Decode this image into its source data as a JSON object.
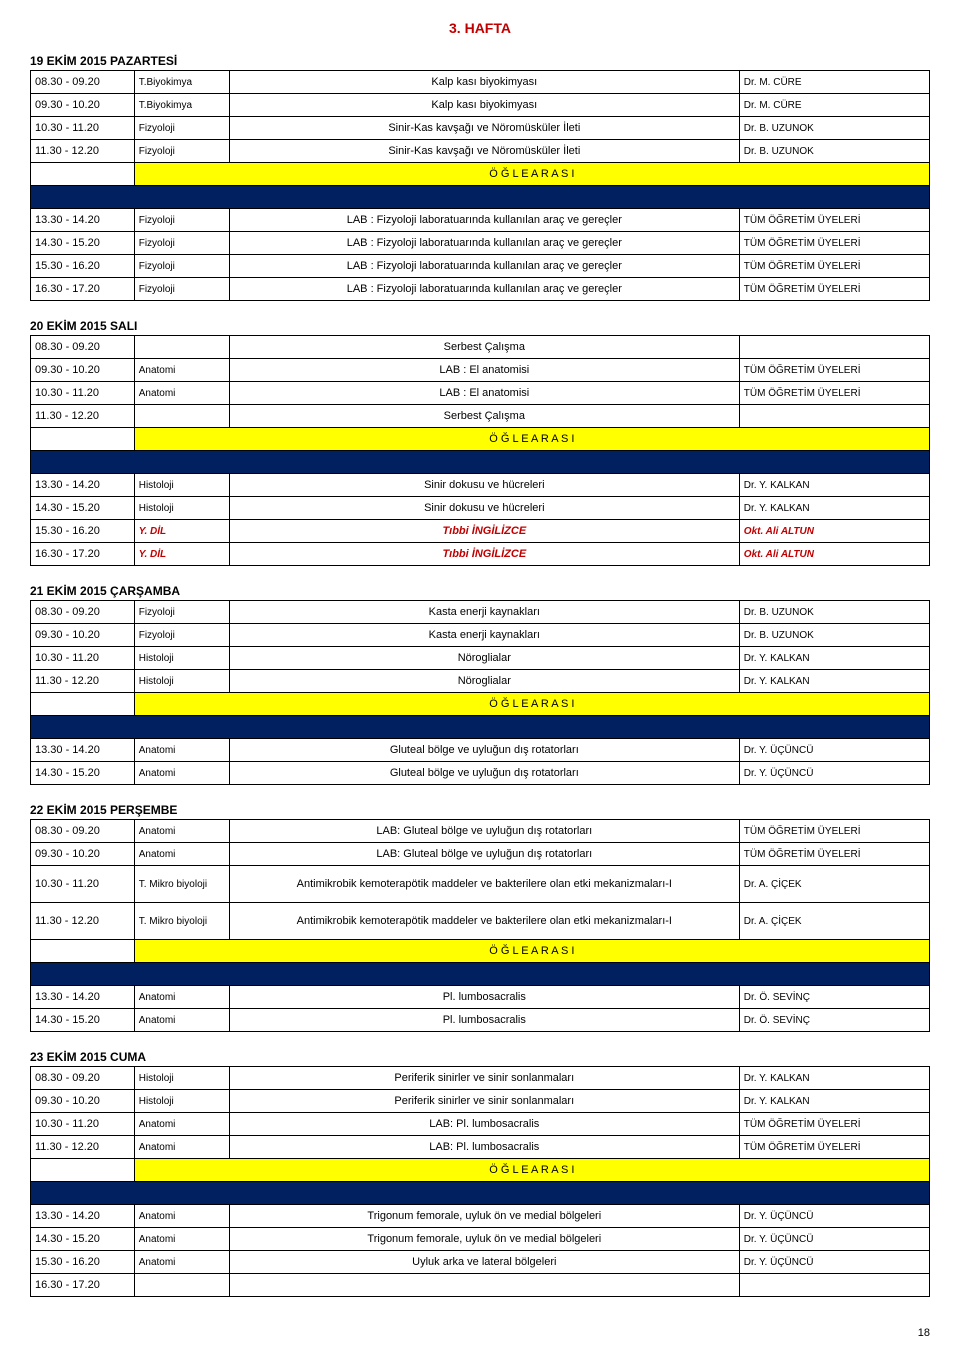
{
  "page_title": "3. HAFTA",
  "break_label": "Ö Ğ L E    A R A S I",
  "page_number": "18",
  "colors": {
    "title": "#c00000",
    "blue_row": "#002060",
    "yellow_row": "#ffff00",
    "red_text": "#c00000"
  },
  "days": [
    {
      "heading": "19 EKİM 2015 PAZARTESİ",
      "rows": [
        {
          "type": "row",
          "time": "08.30 - 09.20",
          "dept": "T.Biyokimya",
          "desc": "Kalp kası biyokimyası",
          "teacher": "Dr. M. CÜRE"
        },
        {
          "type": "row",
          "time": "09.30 - 10.20",
          "dept": "T.Biyokimya",
          "desc": "Kalp kası biyokimyası",
          "teacher": "Dr. M. CÜRE"
        },
        {
          "type": "row",
          "time": "10.30 - 11.20",
          "dept": "Fizyoloji",
          "desc": "Sinir-Kas kavşağı ve Nöromüsküler İleti",
          "teacher": "Dr. B. UZUNOK"
        },
        {
          "type": "row",
          "time": "11.30 - 12.20",
          "dept": "Fizyoloji",
          "desc": "Sinir-Kas kavşağı ve Nöromüsküler İleti",
          "teacher": "Dr. B. UZUNOK"
        },
        {
          "type": "break"
        },
        {
          "type": "blue"
        },
        {
          "type": "row",
          "time": "13.30 - 14.20",
          "dept": "Fizyoloji",
          "desc": "LAB : Fizyoloji laboratuarında kullanılan araç ve gereçler",
          "teacher": "TÜM ÖĞRETİM ÜYELERİ"
        },
        {
          "type": "row",
          "time": "14.30 - 15.20",
          "dept": "Fizyoloji",
          "desc": "LAB : Fizyoloji laboratuarında kullanılan araç ve gereçler",
          "teacher": "TÜM ÖĞRETİM ÜYELERİ"
        },
        {
          "type": "row",
          "time": "15.30 - 16.20",
          "dept": "Fizyoloji",
          "desc": "LAB : Fizyoloji laboratuarında kullanılan araç ve gereçler",
          "teacher": "TÜM ÖĞRETİM ÜYELERİ"
        },
        {
          "type": "row",
          "time": "16.30 - 17.20",
          "dept": "Fizyoloji",
          "desc": "LAB : Fizyoloji laboratuarında kullanılan araç ve gereçler",
          "teacher": "TÜM ÖĞRETİM ÜYELERİ"
        }
      ]
    },
    {
      "heading": "20 EKİM 2015 SALI",
      "rows": [
        {
          "type": "row",
          "time": "08.30 - 09.20",
          "dept": "",
          "desc": "Serbest Çalışma",
          "teacher": ""
        },
        {
          "type": "row",
          "time": "09.30 - 10.20",
          "dept": "Anatomi",
          "desc": "LAB : El anatomisi",
          "teacher": "TÜM ÖĞRETİM ÜYELERİ"
        },
        {
          "type": "row",
          "time": "10.30 - 11.20",
          "dept": "Anatomi",
          "desc": "LAB : El anatomisi",
          "teacher": "TÜM ÖĞRETİM ÜYELERİ"
        },
        {
          "type": "row",
          "time": "11.30 - 12.20",
          "dept": "",
          "desc": "Serbest Çalışma",
          "teacher": ""
        },
        {
          "type": "break"
        },
        {
          "type": "blue"
        },
        {
          "type": "row",
          "time": "13.30 - 14.20",
          "dept": "Histoloji",
          "desc": "Sinir dokusu ve hücreleri",
          "teacher": "Dr. Y. KALKAN"
        },
        {
          "type": "row",
          "time": "14.30 - 15.20",
          "dept": "Histoloji",
          "desc": "Sinir dokusu ve hücreleri",
          "teacher": "Dr. Y. KALKAN"
        },
        {
          "type": "row",
          "time": "15.30 - 16.20",
          "dept": "Y. DİL",
          "dept_red": true,
          "desc": "Tıbbi İNGİLİZCE",
          "desc_red": true,
          "teacher": "Okt. Ali ALTUN",
          "teacher_red": true
        },
        {
          "type": "row",
          "time": "16.30 - 17.20",
          "dept": "Y. DİL",
          "dept_red": true,
          "desc": "Tıbbi İNGİLİZCE",
          "desc_red": true,
          "teacher": "Okt. Ali ALTUN",
          "teacher_red": true
        }
      ]
    },
    {
      "heading": "21 EKİM 2015 ÇARŞAMBA",
      "rows": [
        {
          "type": "row",
          "time": "08.30 - 09.20",
          "dept": "Fizyoloji",
          "desc": "Kasta enerji kaynakları",
          "teacher": "Dr. B. UZUNOK"
        },
        {
          "type": "row",
          "time": "09.30 - 10.20",
          "dept": "Fizyoloji",
          "desc": "Kasta enerji kaynakları",
          "teacher": "Dr. B. UZUNOK"
        },
        {
          "type": "row",
          "time": "10.30 - 11.20",
          "dept": "Histoloji",
          "desc": "Nöroglialar",
          "teacher": "Dr. Y. KALKAN"
        },
        {
          "type": "row",
          "time": "11.30 - 12.20",
          "dept": "Histoloji",
          "desc": "Nöroglialar",
          "teacher": "Dr. Y. KALKAN"
        },
        {
          "type": "break"
        },
        {
          "type": "blue"
        },
        {
          "type": "row",
          "time": "13.30 - 14.20",
          "dept": "Anatomi",
          "desc": "Gluteal bölge ve uyluğun dış rotatorları",
          "teacher": "Dr. Y. ÜÇÜNCÜ"
        },
        {
          "type": "row",
          "time": "14.30 - 15.20",
          "dept": "Anatomi",
          "desc": "Gluteal bölge ve uyluğun dış rotatorları",
          "teacher": "Dr. Y. ÜÇÜNCÜ"
        }
      ]
    },
    {
      "heading": "22 EKİM 2015 PERŞEMBE",
      "rows": [
        {
          "type": "row",
          "time": "08.30 - 09.20",
          "dept": "Anatomi",
          "desc": "LAB: Gluteal bölge ve uyluğun dış rotatorları",
          "teacher": "TÜM ÖĞRETİM ÜYELERİ"
        },
        {
          "type": "row",
          "time": "09.30 - 10.20",
          "dept": "Anatomi",
          "desc": "LAB: Gluteal bölge ve uyluğun dış rotatorları",
          "teacher": "TÜM ÖĞRETİM ÜYELERİ"
        },
        {
          "type": "row",
          "time": "10.30 - 11.20",
          "dept": "T. Mikro biyoloji",
          "desc": "Antimikrobik kemoterapötik maddeler ve bakterilere olan etki mekanizmaları-I",
          "teacher": "Dr. A. ÇİÇEK",
          "tall": true
        },
        {
          "type": "row",
          "time": "11.30 - 12.20",
          "dept": "T. Mikro biyoloji",
          "desc": "Antimikrobik kemoterapötik maddeler ve bakterilere olan etki mekanizmaları-I",
          "teacher": "Dr. A. ÇİÇEK",
          "tall": true
        },
        {
          "type": "break"
        },
        {
          "type": "blue"
        },
        {
          "type": "row",
          "time": "13.30 - 14.20",
          "dept": "Anatomi",
          "desc": "Pl. lumbosacralis",
          "teacher": "Dr. Ö. SEVİNÇ"
        },
        {
          "type": "row",
          "time": "14.30 - 15.20",
          "dept": "Anatomi",
          "desc": "Pl. lumbosacralis",
          "teacher": "Dr. Ö. SEVİNÇ"
        }
      ]
    },
    {
      "heading": "23 EKİM 2015 CUMA",
      "rows": [
        {
          "type": "row",
          "time": "08.30 - 09.20",
          "dept": "Histoloji",
          "desc": "Periferik sinirler ve sinir sonlanmaları",
          "teacher": "Dr. Y. KALKAN"
        },
        {
          "type": "row",
          "time": "09.30 - 10.20",
          "dept": "Histoloji",
          "desc": "Periferik sinirler ve sinir sonlanmaları",
          "teacher": "Dr. Y. KALKAN"
        },
        {
          "type": "row",
          "time": "10.30 - 11.20",
          "dept": "Anatomi",
          "desc": "LAB: Pl. lumbosacralis",
          "teacher": "TÜM ÖĞRETİM ÜYELERİ"
        },
        {
          "type": "row",
          "time": "11.30 - 12.20",
          "dept": "Anatomi",
          "desc": "LAB: Pl. lumbosacralis",
          "teacher": "TÜM ÖĞRETİM ÜYELERİ"
        },
        {
          "type": "break"
        },
        {
          "type": "blue"
        },
        {
          "type": "row",
          "time": "13.30 - 14.20",
          "dept": "Anatomi",
          "desc": "Trigonum femorale, uyluk ön ve medial bölgeleri",
          "teacher": "Dr. Y. ÜÇÜNCÜ"
        },
        {
          "type": "row",
          "time": "14.30 - 15.20",
          "dept": "Anatomi",
          "desc": "Trigonum femorale, uyluk ön ve medial bölgeleri",
          "teacher": "Dr. Y. ÜÇÜNCÜ"
        },
        {
          "type": "row",
          "time": "15.30 - 16.20",
          "dept": "Anatomi",
          "desc": "Uyluk arka ve lateral bölgeleri",
          "teacher": "Dr. Y. ÜÇÜNCÜ"
        },
        {
          "type": "row",
          "time": "16.30 - 17.20",
          "dept": "",
          "desc": "",
          "teacher": ""
        }
      ]
    }
  ]
}
